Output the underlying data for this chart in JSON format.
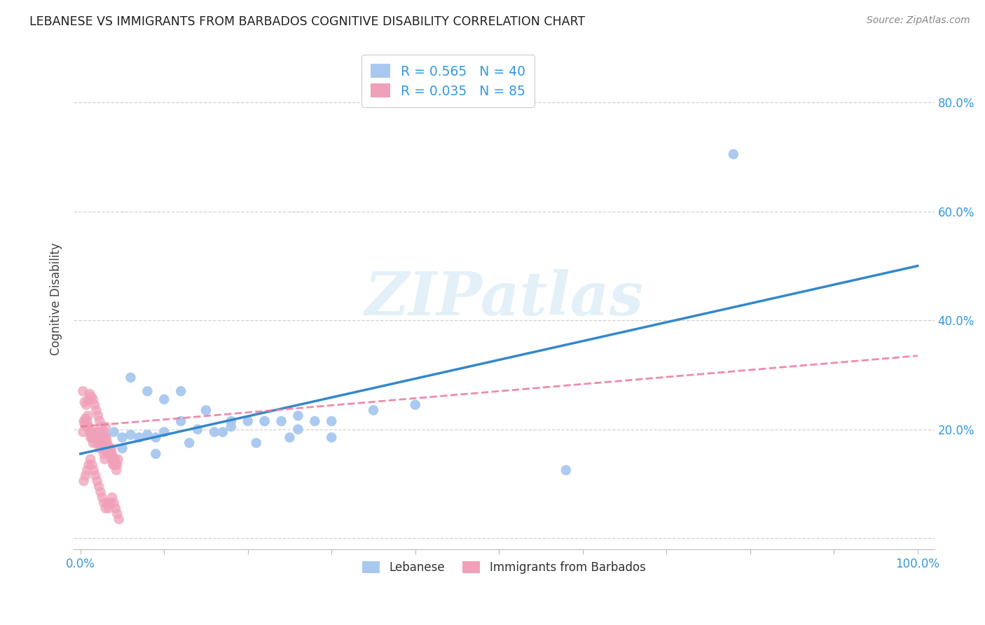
{
  "title": "LEBANESE VS IMMIGRANTS FROM BARBADOS COGNITIVE DISABILITY CORRELATION CHART",
  "source": "Source: ZipAtlas.com",
  "ylabel": "Cognitive Disability",
  "watermark": "ZIPatlas",
  "xtick_positions": [
    0.0,
    0.1,
    0.2,
    0.3,
    0.4,
    0.5,
    0.6,
    0.7,
    0.8,
    0.9,
    1.0
  ],
  "xticklabels": [
    "0.0%",
    "",
    "",
    "",
    "",
    "",
    "",
    "",
    "",
    "",
    "100.0%"
  ],
  "ytick_positions": [
    0.0,
    0.2,
    0.4,
    0.6,
    0.8
  ],
  "yticklabels": [
    "",
    "20.0%",
    "40.0%",
    "60.0%",
    "80.0%"
  ],
  "legend_label1": "R = 0.565   N = 40",
  "legend_label2": "R = 0.035   N = 85",
  "legend_entry1": "Lebanese",
  "legend_entry2": "Immigrants from Barbados",
  "color_blue": "#a8c8f0",
  "color_pink": "#f0a0b8",
  "line_blue": "#3388cc",
  "line_pink": "#ee7799",
  "title_color": "#202020",
  "source_color": "#888888",
  "axis_color": "#3399dd",
  "blue_line_x0": 0.0,
  "blue_line_y0": 0.155,
  "blue_line_x1": 1.0,
  "blue_line_y1": 0.5,
  "pink_line_x0": 0.0,
  "pink_line_y0": 0.205,
  "pink_line_x1": 1.0,
  "pink_line_y1": 0.335,
  "blue_scatter_x": [
    0.015,
    0.022,
    0.03,
    0.04,
    0.05,
    0.06,
    0.07,
    0.08,
    0.09,
    0.1,
    0.12,
    0.14,
    0.16,
    0.18,
    0.2,
    0.22,
    0.24,
    0.26,
    0.28,
    0.3,
    0.06,
    0.08,
    0.1,
    0.12,
    0.15,
    0.18,
    0.22,
    0.26,
    0.3,
    0.35,
    0.4,
    0.05,
    0.09,
    0.13,
    0.17,
    0.21,
    0.25,
    0.78,
    0.58,
    0.03
  ],
  "blue_scatter_y": [
    0.185,
    0.175,
    0.19,
    0.195,
    0.185,
    0.19,
    0.185,
    0.19,
    0.185,
    0.195,
    0.215,
    0.2,
    0.195,
    0.205,
    0.215,
    0.215,
    0.215,
    0.225,
    0.215,
    0.215,
    0.295,
    0.27,
    0.255,
    0.27,
    0.235,
    0.215,
    0.215,
    0.2,
    0.185,
    0.235,
    0.245,
    0.165,
    0.155,
    0.175,
    0.195,
    0.175,
    0.185,
    0.705,
    0.125,
    0.16
  ],
  "pink_scatter_x": [
    0.003,
    0.004,
    0.005,
    0.006,
    0.007,
    0.008,
    0.009,
    0.01,
    0.011,
    0.012,
    0.013,
    0.014,
    0.015,
    0.016,
    0.017,
    0.018,
    0.019,
    0.02,
    0.021,
    0.022,
    0.023,
    0.024,
    0.025,
    0.026,
    0.027,
    0.028,
    0.029,
    0.03,
    0.031,
    0.032,
    0.033,
    0.034,
    0.035,
    0.036,
    0.037,
    0.038,
    0.039,
    0.04,
    0.041,
    0.042,
    0.043,
    0.044,
    0.045,
    0.003,
    0.005,
    0.007,
    0.009,
    0.011,
    0.013,
    0.015,
    0.017,
    0.019,
    0.021,
    0.023,
    0.025,
    0.027,
    0.029,
    0.031,
    0.033,
    0.035,
    0.037,
    0.039,
    0.041,
    0.004,
    0.006,
    0.008,
    0.01,
    0.012,
    0.014,
    0.016,
    0.018,
    0.02,
    0.022,
    0.024,
    0.026,
    0.028,
    0.03,
    0.032,
    0.034,
    0.036,
    0.038,
    0.04,
    0.042,
    0.044,
    0.046
  ],
  "pink_scatter_y": [
    0.195,
    0.215,
    0.21,
    0.22,
    0.205,
    0.215,
    0.225,
    0.205,
    0.195,
    0.185,
    0.195,
    0.185,
    0.175,
    0.185,
    0.195,
    0.185,
    0.175,
    0.195,
    0.185,
    0.175,
    0.165,
    0.175,
    0.185,
    0.175,
    0.165,
    0.155,
    0.145,
    0.205,
    0.185,
    0.175,
    0.165,
    0.155,
    0.165,
    0.155,
    0.165,
    0.155,
    0.145,
    0.135,
    0.145,
    0.135,
    0.125,
    0.135,
    0.145,
    0.27,
    0.25,
    0.245,
    0.255,
    0.265,
    0.26,
    0.255,
    0.245,
    0.235,
    0.225,
    0.215,
    0.205,
    0.195,
    0.185,
    0.175,
    0.165,
    0.155,
    0.145,
    0.135,
    0.145,
    0.105,
    0.115,
    0.125,
    0.135,
    0.145,
    0.135,
    0.125,
    0.115,
    0.105,
    0.095,
    0.085,
    0.075,
    0.065,
    0.055,
    0.065,
    0.055,
    0.065,
    0.075,
    0.065,
    0.055,
    0.045,
    0.035
  ]
}
